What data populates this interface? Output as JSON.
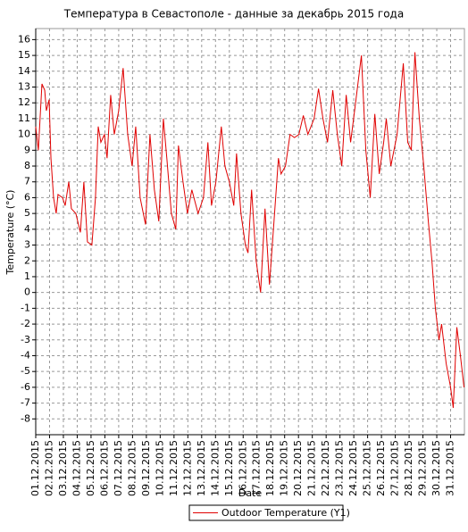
{
  "chart_data": {
    "type": "line",
    "title": "Температура в Севастополе - данные за декабрь 2015 года",
    "x_label": "Date",
    "y_label": "Temperature (°C)",
    "x": [
      0,
      0.19,
      0.45,
      0.65,
      0.77,
      0.97,
      1.1,
      1.29,
      1.48,
      1.61,
      1.94,
      2.13,
      2.39,
      2.58,
      2.9,
      3.23,
      3.48,
      3.74,
      4.06,
      4.32,
      4.52,
      4.71,
      4.97,
      5.16,
      5.42,
      5.68,
      6,
      6.32,
      6.65,
      6.97,
      7.23,
      7.55,
      7.94,
      8.26,
      8.58,
      8.9,
      9.23,
      9.48,
      9.81,
      10.13,
      10.32,
      10.65,
      10.97,
      11.29,
      11.74,
      12.13,
      12.45,
      12.71,
      13.03,
      13.42,
      13.68,
      14,
      14.32,
      14.52,
      14.84,
      15.16,
      15.35,
      15.61,
      15.94,
      16.26,
      16.58,
      16.9,
      17.23,
      17.55,
      17.74,
      18.06,
      18.39,
      18.71,
      19.03,
      19.35,
      19.68,
      20.13,
      20.45,
      20.77,
      21.1,
      21.48,
      21.81,
      22.13,
      22.45,
      22.77,
      23.1,
      23.55,
      23.87,
      24.19,
      24.52,
      24.84,
      25.16,
      25.35,
      25.68,
      26.13,
      26.58,
      26.9,
      27.16,
      27.42,
      27.74,
      28.06,
      28.39,
      28.65,
      28.9,
      29.16,
      29.35,
      29.68,
      30,
      30.19,
      30.45,
      30.71,
      30.97
    ],
    "series": [
      {
        "name": "Outdoor Temperature (Y1)",
        "color": "#e00000",
        "values": [
          10.5,
          9,
          13.2,
          12.8,
          11.5,
          12.2,
          8.5,
          6,
          5,
          6.2,
          6,
          5.5,
          7,
          5.3,
          5,
          3.8,
          7,
          3.2,
          3,
          6,
          10.5,
          9.5,
          10,
          8.5,
          12.5,
          10,
          11.5,
          14.2,
          10,
          8,
          10.5,
          6,
          4.3,
          10,
          6.5,
          4.5,
          11,
          8.5,
          5,
          4,
          9.3,
          7,
          5,
          6.5,
          5,
          6,
          9.5,
          5.5,
          7,
          10.5,
          8,
          7,
          5.5,
          8.8,
          5,
          3,
          2.5,
          6.5,
          2,
          0,
          5.3,
          0.5,
          4.5,
          8.5,
          7.5,
          8,
          10,
          9.8,
          10,
          11.2,
          10,
          11,
          12.9,
          11,
          9.5,
          12.8,
          10,
          8,
          12.5,
          9.5,
          11.8,
          15,
          9,
          6,
          11.3,
          7.5,
          9.5,
          11,
          8,
          10,
          14.5,
          9.5,
          9,
          15.2,
          11,
          8,
          4.5,
          2,
          -1,
          -3,
          -2,
          -4.5,
          -6,
          -7.3,
          -2.2,
          -4,
          -6
        ]
      }
    ],
    "xlim": [
      0,
      31
    ],
    "xticks": [
      {
        "value": 0,
        "label": "01.12.2015"
      },
      {
        "value": 1,
        "label": "02.12.2015"
      },
      {
        "value": 2,
        "label": "03.12.2015"
      },
      {
        "value": 3,
        "label": "04.12.2015"
      },
      {
        "value": 4,
        "label": "05.12.2015"
      },
      {
        "value": 5,
        "label": "06.12.2015"
      },
      {
        "value": 6,
        "label": "07.12.2015"
      },
      {
        "value": 7,
        "label": "08.12.2015"
      },
      {
        "value": 8,
        "label": "09.12.2015"
      },
      {
        "value": 9,
        "label": "10.12.2015"
      },
      {
        "value": 10,
        "label": "11.12.2015"
      },
      {
        "value": 11,
        "label": "12.12.2015"
      },
      {
        "value": 12,
        "label": "13.12.2015"
      },
      {
        "value": 13,
        "label": "14.12.2015"
      },
      {
        "value": 14,
        "label": "15.12.2015"
      },
      {
        "value": 15,
        "label": "16.12.2015"
      },
      {
        "value": 16,
        "label": "17.12.2015"
      },
      {
        "value": 17,
        "label": "18.12.2015"
      },
      {
        "value": 18,
        "label": "19.12.2015"
      },
      {
        "value": 19,
        "label": "20.12.2015"
      },
      {
        "value": 20,
        "label": "21.12.2015"
      },
      {
        "value": 21,
        "label": "22.12.2015"
      },
      {
        "value": 22,
        "label": "23.12.2015"
      },
      {
        "value": 23,
        "label": "24.12.2015"
      },
      {
        "value": 24,
        "label": "25.12.2015"
      },
      {
        "value": 25,
        "label": "26.12.2015"
      },
      {
        "value": 26,
        "label": "27.12.2015"
      },
      {
        "value": 27,
        "label": "28.12.2015"
      },
      {
        "value": 28,
        "label": "29.12.2015"
      },
      {
        "value": 29,
        "label": "30.12.2015"
      },
      {
        "value": 30,
        "label": "31.12.2015"
      }
    ],
    "ylim": [
      -9,
      16.7
    ],
    "yticks": [
      -8,
      -7,
      -6,
      -5,
      -4,
      -3,
      -2,
      -1,
      0,
      1,
      2,
      3,
      4,
      5,
      6,
      7,
      8,
      9,
      10,
      11,
      12,
      13,
      14,
      15,
      16
    ],
    "grid": true
  }
}
